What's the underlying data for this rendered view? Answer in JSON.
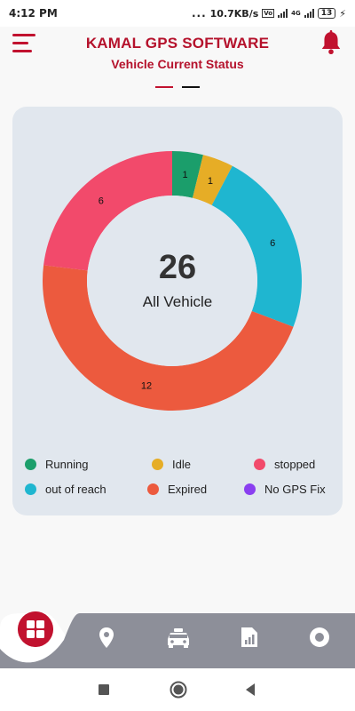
{
  "status_bar": {
    "time": "4:12 PM",
    "dots": "...",
    "speed": "10.7KB/s",
    "network": "4G",
    "battery": "13"
  },
  "header": {
    "title": "KAMAL GPS SOFTWARE",
    "subtitle": "Vehicle Current Status"
  },
  "colors": {
    "brand": "#b5122c",
    "running": "#1b9e6b",
    "idle": "#e6ad26",
    "stopped": "#f24a6b",
    "out_of_reach": "#1fb6d0",
    "expired": "#ec5a3e",
    "no_gps_fix": "#8a3ff0"
  },
  "summary": {
    "total": "26",
    "label": "All Vehicle"
  },
  "chart_data": {
    "type": "pie",
    "variant": "donut",
    "total": 26,
    "center_value": "26",
    "center_label": "All Vehicle",
    "categories": [
      "Running",
      "Idle",
      "out of reach",
      "Expired",
      "stopped",
      "No GPS Fix"
    ],
    "values": [
      1,
      1,
      6,
      12,
      6,
      0
    ],
    "value_labels": [
      "1",
      "1",
      "6",
      "12",
      "6",
      ""
    ],
    "colors": [
      "#1b9e6b",
      "#e6ad26",
      "#1fb6d0",
      "#ec5a3e",
      "#f24a6b",
      "#8a3ff0"
    ],
    "legend_position": "bottom"
  },
  "legend": [
    {
      "label": "Running",
      "color": "#1b9e6b"
    },
    {
      "label": "Idle",
      "color": "#e6ad26"
    },
    {
      "label": "stopped",
      "color": "#f24a6b"
    },
    {
      "label": "out of reach",
      "color": "#1fb6d0"
    },
    {
      "label": "Expired",
      "color": "#ec5a3e"
    },
    {
      "label": "No GPS Fix",
      "color": "#8a3ff0"
    }
  ],
  "bottom_nav": {
    "items": [
      "dashboard-icon",
      "location-pin-icon",
      "car-icon",
      "report-icon",
      "settings-icon"
    ]
  },
  "system_nav": [
    "recents-icon",
    "home-icon",
    "back-icon"
  ]
}
